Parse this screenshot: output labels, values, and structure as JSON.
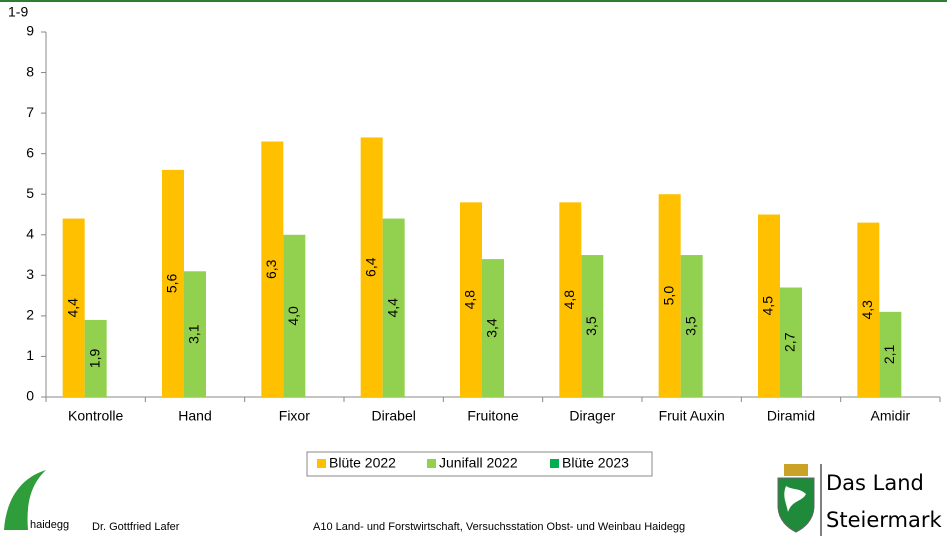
{
  "chart_data": {
    "type": "bar",
    "y_label": "1-9",
    "categories": [
      "Kontrolle",
      "Hand",
      "Fixor",
      "Dirabel",
      "Fruitone",
      "Dirager",
      "Fruit Auxin",
      "Diramid",
      "Amidir"
    ],
    "series": [
      {
        "name": "Blüte 2022",
        "color": "#ffc000",
        "values": [
          4.4,
          5.6,
          6.3,
          6.4,
          4.8,
          4.8,
          5.0,
          4.5,
          4.3
        ],
        "value_labels": [
          "4,4",
          "5,6",
          "6,3",
          "6,4",
          "4,8",
          "4,8",
          "5,0",
          "4,5",
          "4,3"
        ]
      },
      {
        "name": "Junifall 2022",
        "color": "#92d050",
        "values": [
          1.9,
          3.1,
          4.0,
          4.4,
          3.4,
          3.5,
          3.5,
          2.7,
          2.1
        ],
        "value_labels": [
          "1,9",
          "3,1",
          "4,0",
          "4,4",
          "3,4",
          "3,5",
          "3,5",
          "2,7",
          "2,1"
        ]
      },
      {
        "name": "Blüte 2023",
        "color": "#00b050",
        "values": [
          null,
          null,
          null,
          null,
          null,
          null,
          null,
          null,
          null
        ]
      }
    ],
    "ylim": [
      0,
      9
    ],
    "yticks": [
      0,
      1,
      2,
      3,
      4,
      5,
      6,
      7,
      8,
      9
    ],
    "grid": false,
    "legend": "bottom"
  },
  "footer": {
    "logo_text": "haidegg",
    "author": "Dr. Gottfried Lafer",
    "institution": "A10 Land- und Forstwirtschaft, Versuchsstation Obst- und Weinbau Haidegg",
    "brand_line1": "Das Land",
    "brand_line2": "Steiermark"
  }
}
